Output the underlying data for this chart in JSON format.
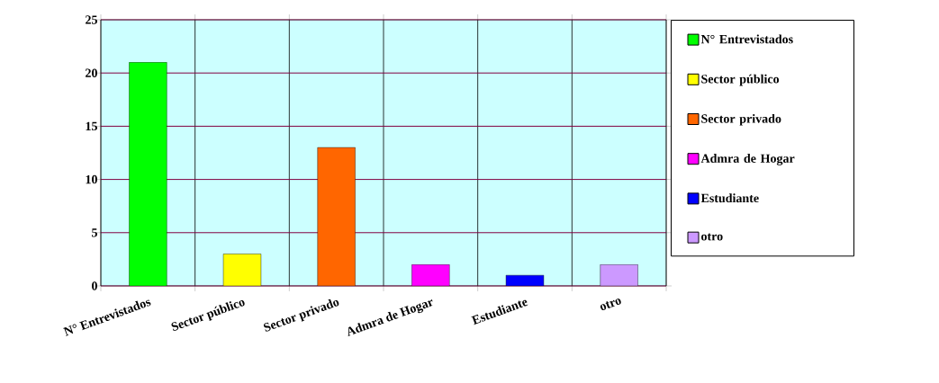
{
  "chart_data": {
    "type": "bar",
    "categories": [
      "N° Entrevistados",
      "Sector público",
      "Sector privado",
      "Admra de Hogar",
      "Estudiante",
      "otro"
    ],
    "series": [
      {
        "name": "N° Entrevistados",
        "color": "#00ff00",
        "values": [
          21,
          null,
          null,
          null,
          null,
          null
        ]
      },
      {
        "name": "Sector público",
        "color": "#ffff00",
        "values": [
          null,
          3,
          null,
          null,
          null,
          null
        ]
      },
      {
        "name": "Sector privado",
        "color": "#ff6600",
        "values": [
          null,
          null,
          13,
          null,
          null,
          null
        ]
      },
      {
        "name": "Admra de Hogar",
        "color": "#ff00ff",
        "values": [
          null,
          null,
          null,
          2,
          null,
          null
        ]
      },
      {
        "name": "Estudiante",
        "color": "#0000ff",
        "values": [
          null,
          null,
          null,
          null,
          1,
          null
        ]
      },
      {
        "name": "otro",
        "color": "#cc99ff",
        "values": [
          null,
          null,
          null,
          null,
          null,
          2
        ]
      }
    ],
    "ylim": [
      0,
      25
    ],
    "yticks": [
      0,
      5,
      10,
      15,
      20,
      25
    ],
    "grid": true,
    "legend": "right"
  }
}
